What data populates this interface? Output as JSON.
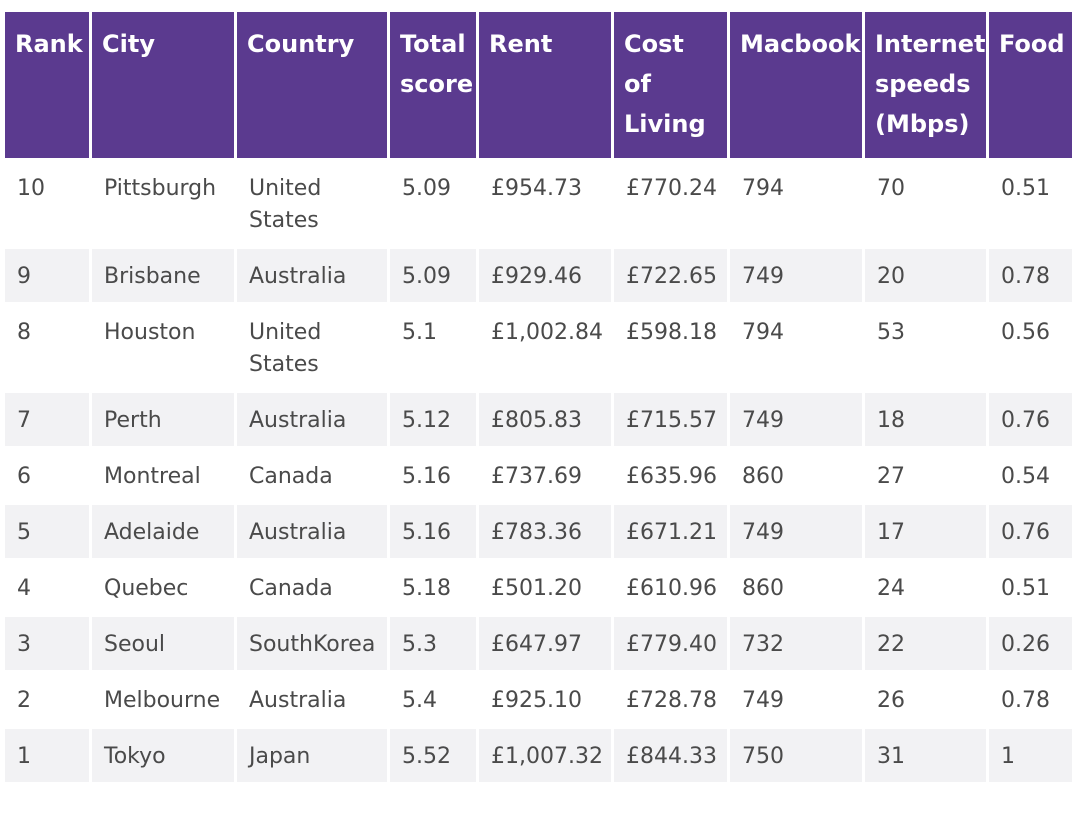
{
  "table": {
    "headers": [
      "Rank",
      "City",
      "Country",
      "Total\nscore",
      "Rent",
      "Cost of\nLiving",
      "Macbook",
      "Internet\nspeeds\n(Mbps)",
      "Food"
    ],
    "rows": [
      [
        "10",
        "Pittsburgh",
        "United\nStates",
        "5.09",
        "£954.73",
        "£770.24",
        "794",
        "70",
        "0.51"
      ],
      [
        "9",
        "Brisbane",
        "Australia",
        "5.09",
        "£929.46",
        "£722.65",
        "749",
        "20",
        "0.78"
      ],
      [
        "8",
        "Houston",
        "United\nStates",
        "5.1",
        "£1,002.84",
        "£598.18",
        "794",
        "53",
        "0.56"
      ],
      [
        "7",
        "Perth",
        "Australia",
        "5.12",
        "£805.83",
        "£715.57",
        "749",
        "18",
        "0.76"
      ],
      [
        "6",
        "Montreal",
        "Canada",
        "5.16",
        "£737.69",
        "£635.96",
        "860",
        "27",
        "0.54"
      ],
      [
        "5",
        "Adelaide",
        "Australia",
        "5.16",
        "£783.36",
        "£671.21",
        "749",
        "17",
        "0.76"
      ],
      [
        "4",
        "Quebec",
        "Canada",
        "5.18",
        "£501.20",
        "£610.96",
        "860",
        "24",
        "0.51"
      ],
      [
        "3",
        "Seoul",
        "SouthKorea",
        "5.3",
        "£647.97",
        "£779.40",
        "732",
        "22",
        "0.26"
      ],
      [
        "2",
        "Melbourne",
        "Australia",
        "5.4",
        "£925.10",
        "£728.78",
        "749",
        "26",
        "0.78"
      ],
      [
        "1",
        "Tokyo",
        "Japan",
        "5.52",
        "£1,007.32",
        "£844.33",
        "750",
        "31",
        "1"
      ]
    ]
  },
  "colors": {
    "header_bg": "#5b3a8f",
    "header_text": "#ffffff",
    "row_alt_bg": "#f2f2f4",
    "body_text": "#4a4a4a"
  }
}
